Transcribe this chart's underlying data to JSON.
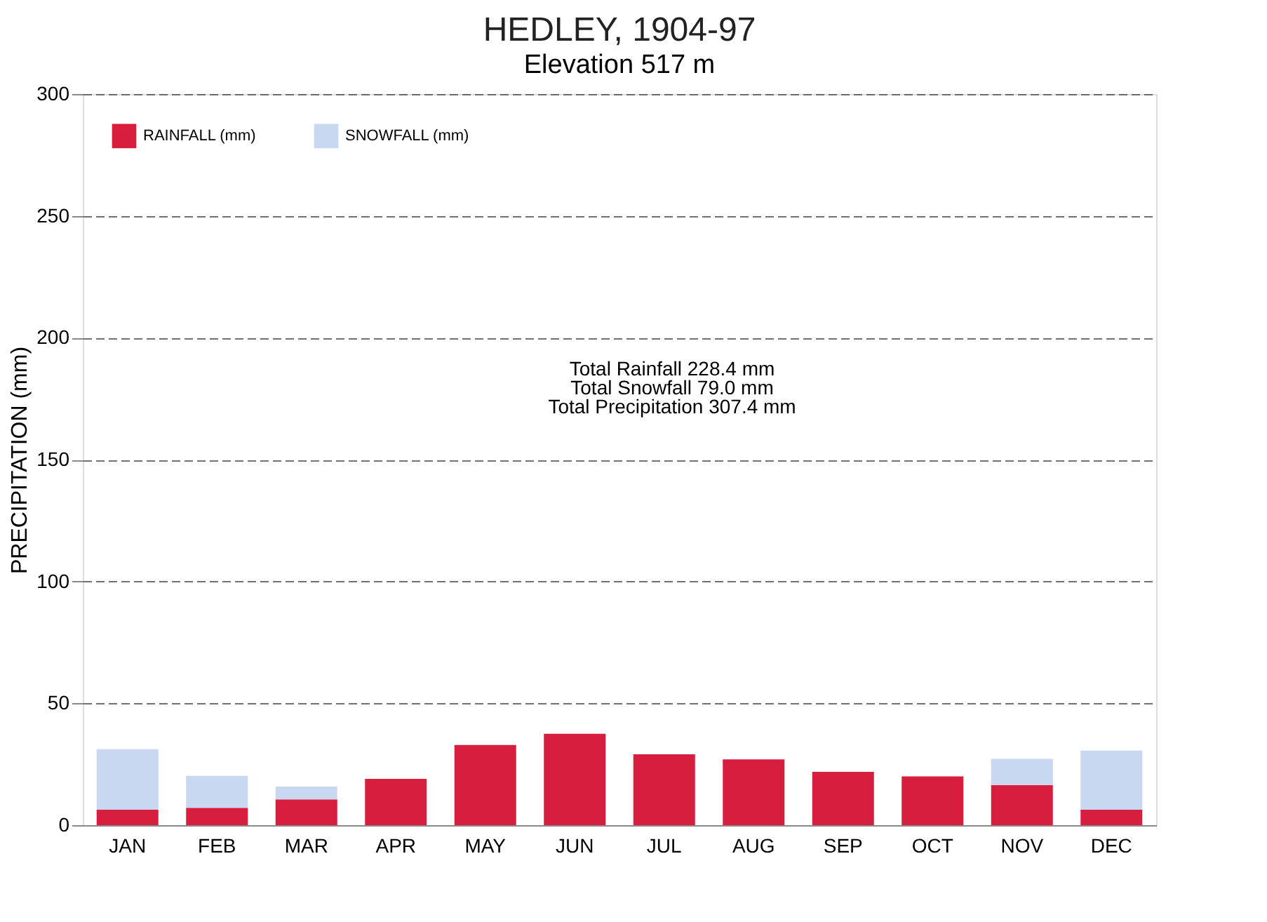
{
  "chart_data": {
    "type": "bar",
    "title": "HEDLEY, 1904-97",
    "subtitle": "Elevation  517 m",
    "ylabel": "PRECIPITATION (mm)",
    "categories": [
      "JAN",
      "FEB",
      "MAR",
      "APR",
      "MAY",
      "JUN",
      "JUL",
      "AUG",
      "SEP",
      "OCT",
      "NOV",
      "DEC"
    ],
    "stacked": true,
    "series": [
      {
        "name": "RAINFALL (mm)",
        "color": "#d81e3f",
        "values": [
          6.3,
          7.1,
          10.6,
          19.0,
          32.9,
          37.5,
          29.1,
          27.0,
          21.9,
          20.0,
          16.5,
          6.3
        ]
      },
      {
        "name": "SNOWFALL (mm)",
        "color": "#c8d8f0",
        "values": [
          24.9,
          13.1,
          5.2,
          null,
          null,
          null,
          null,
          null,
          null,
          null,
          10.7,
          24.3
        ]
      }
    ],
    "ylim": [
      0,
      300
    ],
    "yticks": [
      0,
      50,
      100,
      150,
      200,
      250,
      300
    ],
    "grid": "y",
    "legend": "top left",
    "annotations": [
      "Total Rainfall 228.4 mm",
      "Total Snowfall 79.0 mm",
      "Total Precipitation 307.4 mm"
    ]
  }
}
